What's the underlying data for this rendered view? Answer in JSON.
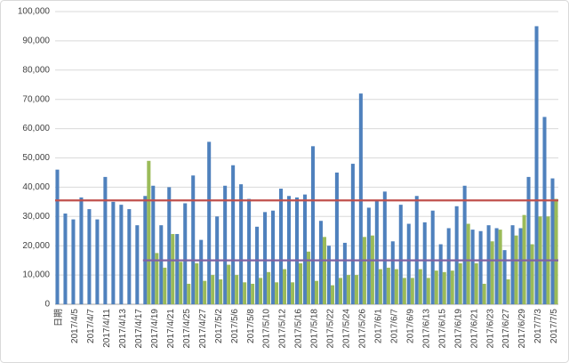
{
  "chart_data": {
    "type": "bar",
    "categories": [
      "日期",
      null,
      "2017/4/5",
      null,
      "2017/4/7",
      null,
      "2017/4/11",
      null,
      "2017/4/13",
      null,
      "2017/4/17",
      null,
      "2017/4/19",
      null,
      "2017/4/21",
      null,
      "2017/4/25",
      null,
      "2017/4/27",
      null,
      "2017/5/2",
      null,
      "2017/5/6",
      null,
      "2017/5/8",
      null,
      "2017/5/10",
      null,
      "2017/5/12",
      null,
      "2017/5/16",
      null,
      "2017/5/18",
      null,
      "2017/5/22",
      null,
      "2017/5/24",
      null,
      "2017/5/26",
      null,
      "2017/6/1",
      null,
      "2017/6/7",
      null,
      "2017/6/9",
      null,
      "2017/6/13",
      null,
      "2017/6/15",
      null,
      "2017/6/19",
      null,
      "2017/6/21",
      null,
      "2017/6/23",
      null,
      "2017/6/27",
      null,
      "2017/6/29",
      null,
      "2017/7/3",
      null,
      "2017/7/5"
    ],
    "series": [
      {
        "type": "bar",
        "color": "#4f81bd",
        "values": [
          46000,
          31000,
          29000,
          36500,
          32500,
          29000,
          43500,
          35000,
          34000,
          32500,
          27000,
          37000,
          40500,
          27000,
          40000,
          24000,
          34500,
          44000,
          22000,
          55500,
          30000,
          40500,
          47500,
          41000,
          36000,
          26500,
          31500,
          32000,
          39500,
          37000,
          36500,
          37500,
          54000,
          28500,
          20000,
          45000,
          21000,
          48000,
          72000,
          33000,
          35500,
          38500,
          21500,
          34000,
          27500,
          37000,
          28000,
          32000,
          20500,
          26000,
          33500,
          40500,
          25500,
          25000,
          27000,
          26000,
          18500,
          27000,
          26000,
          43500,
          95000,
          64000,
          43000
        ]
      },
      {
        "type": "bar",
        "color": "#9bbb59",
        "values": [
          null,
          null,
          null,
          null,
          null,
          null,
          null,
          null,
          null,
          null,
          null,
          49000,
          17500,
          12500,
          24000,
          14500,
          7000,
          14000,
          8000,
          10000,
          8500,
          13500,
          10000,
          7500,
          7000,
          9000,
          11000,
          7500,
          12000,
          7500,
          14000,
          18000,
          8000,
          23000,
          6500,
          9000,
          10000,
          10000,
          23000,
          23500,
          12000,
          12500,
          12000,
          9000,
          9000,
          12000,
          9000,
          11500,
          11000,
          11500,
          14000,
          27500,
          14000,
          7000,
          21500,
          25500,
          8500,
          23500,
          30500,
          20500,
          30000,
          30000,
          36000
        ]
      },
      {
        "type": "line",
        "color": "#c0504d",
        "values": [
          35500,
          35500,
          35500,
          35500,
          35500,
          35500,
          35500,
          35500,
          35500,
          35500,
          35500,
          35500,
          35500,
          35500,
          35500,
          35500,
          35500,
          35500,
          35500,
          35500,
          35500,
          35500,
          35500,
          35500,
          35500,
          35500,
          35500,
          35500,
          35500,
          35500,
          35500,
          35500,
          35500,
          35500,
          35500,
          35500,
          35500,
          35500,
          35500,
          35500,
          35500,
          35500,
          35500,
          35500,
          35500,
          35500,
          35500,
          35500,
          35500,
          35500,
          35500,
          35500,
          35500,
          35500,
          35500,
          35500,
          35500,
          35500,
          35500,
          35500,
          35500,
          35500,
          35500
        ]
      },
      {
        "type": "line",
        "color": "#8064a2",
        "values": [
          null,
          null,
          null,
          null,
          null,
          null,
          null,
          null,
          null,
          null,
          null,
          15000,
          15000,
          15000,
          15000,
          15000,
          15000,
          15000,
          15000,
          15000,
          15000,
          15000,
          15000,
          15000,
          15000,
          15000,
          15000,
          15000,
          15000,
          15000,
          15000,
          15000,
          15000,
          15000,
          15000,
          15000,
          15000,
          15000,
          15000,
          15000,
          15000,
          15000,
          15000,
          15000,
          15000,
          15000,
          15000,
          15000,
          15000,
          15000,
          15000,
          15000,
          15000,
          15000,
          15000,
          15000,
          15000,
          15000,
          15000,
          15000,
          15000,
          15000,
          15000
        ]
      }
    ],
    "ylim": [
      0,
      100000
    ],
    "yticks": [
      0,
      {
        "value": 10000,
        "label": "10,000"
      },
      {
        "value": 20000,
        "label": "20,000"
      },
      {
        "value": 30000,
        "label": "30,000"
      },
      {
        "value": 40000,
        "label": "40,000"
      },
      {
        "value": 50000,
        "label": "50,000"
      },
      {
        "value": 60000,
        "label": "60,000"
      },
      {
        "value": 70000,
        "label": "70,000"
      },
      {
        "value": 80000,
        "label": "80,000"
      },
      {
        "value": 90000,
        "label": "90,000"
      },
      {
        "value": 100000,
        "label": "100,000"
      }
    ],
    "grid": true
  }
}
